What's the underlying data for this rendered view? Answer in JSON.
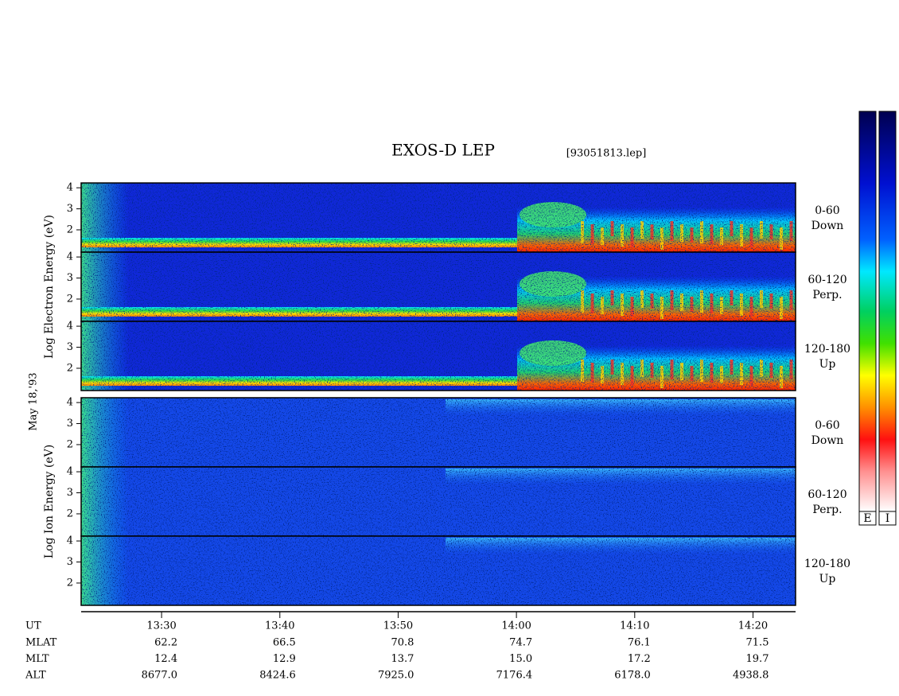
{
  "chart_data": {
    "type": "spectrogram",
    "title": "EXOS-D LEP",
    "file_label": "[93051813.lep]",
    "date_label": "May 18,'93",
    "ylim": [
      0.94,
      4.23
    ],
    "yticks": [
      2,
      3,
      4
    ],
    "xlim": [
      803.2,
      863.6
    ],
    "xticks": [
      {
        "value": 810,
        "label": "13:30"
      },
      {
        "value": 820,
        "label": "13:40"
      },
      {
        "value": 830,
        "label": "13:50"
      },
      {
        "value": 840,
        "label": "14:00"
      },
      {
        "value": 850,
        "label": "14:10"
      },
      {
        "value": 860,
        "label": "14:20"
      }
    ],
    "x_label": "UT",
    "orbit_rows": [
      {
        "label": "MLAT",
        "values": [
          "62.2",
          "66.5",
          "70.8",
          "74.7",
          "76.1",
          "71.5"
        ]
      },
      {
        "label": "MLT",
        "values": [
          "12.4",
          "12.9",
          "13.7",
          "15.0",
          "17.2",
          "19.7"
        ]
      },
      {
        "label": "ALT",
        "values": [
          "8677.0",
          "8424.6",
          "7925.0",
          "7176.4",
          "6178.0",
          "4938.8"
        ]
      }
    ],
    "groups": [
      {
        "axis_label": "Log Electron Energy (eV)",
        "panels": [
          {
            "range": "0-60",
            "direction": "Down"
          },
          {
            "range": "60-120",
            "direction": "Perp."
          },
          {
            "range": "120-180",
            "direction": "Up"
          }
        ]
      },
      {
        "axis_label": "Log Ion Energy (eV)",
        "panels": [
          {
            "range": "0-60",
            "direction": "Down"
          },
          {
            "range": "60-120",
            "direction": "Perp."
          },
          {
            "range": "120-180",
            "direction": "Up"
          }
        ]
      }
    ],
    "colorbar_labels": [
      "E",
      "I"
    ]
  }
}
